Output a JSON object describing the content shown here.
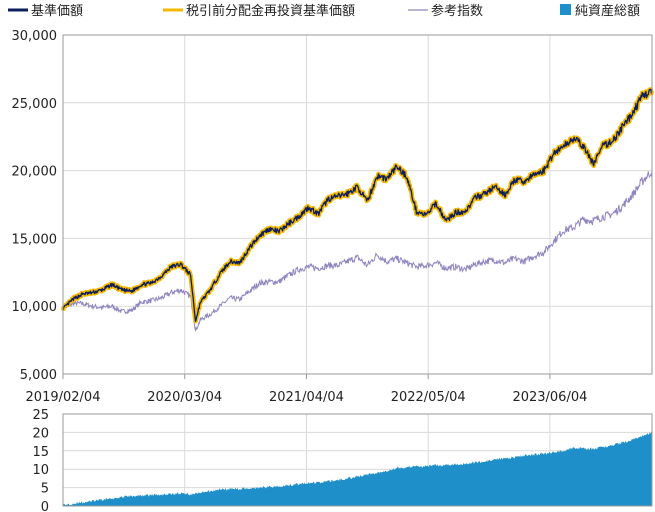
{
  "chart_data": [
    {
      "type": "line",
      "legend_position": "top",
      "legend": [
        {
          "name": "基準価額",
          "color": "#0d1f5c",
          "marker": "line"
        },
        {
          "name": "税引前分配金再投資基準価額",
          "color": "#f5b800",
          "marker": "line"
        },
        {
          "name": "参考指数",
          "color": "#8e86c0",
          "marker": "line"
        },
        {
          "name": "純資産総額",
          "color": "#1f8fc9",
          "marker": "square"
        }
      ],
      "x_tick_labels": [
        "2019/02/04",
        "2020/03/04",
        "2021/04/04",
        "2022/05/04",
        "2023/06/04"
      ],
      "y_tick_labels": [
        "5,000",
        "10,000",
        "15,000",
        "20,000",
        "25,000",
        "30,000"
      ],
      "ylim": [
        5000,
        30000
      ],
      "grid": true,
      "x_range_months": [
        0,
        60
      ],
      "series": [
        {
          "name": "税引前分配金再投資基準価額",
          "color": "#f5b800",
          "points": [
            [
              0,
              9800
            ],
            [
              1,
              10500
            ],
            [
              2,
              10900
            ],
            [
              3,
              11000
            ],
            [
              4,
              11200
            ],
            [
              5,
              11600
            ],
            [
              6,
              11200
            ],
            [
              7,
              11100
            ],
            [
              8,
              11600
            ],
            [
              9,
              11700
            ],
            [
              10,
              12200
            ],
            [
              11,
              12900
            ],
            [
              12,
              13100
            ],
            [
              13,
              12300
            ],
            [
              13.5,
              8900
            ],
            [
              14,
              10300
            ],
            [
              15,
              11200
            ],
            [
              16,
              12400
            ],
            [
              17,
              13300
            ],
            [
              18,
              13200
            ],
            [
              19,
              14300
            ],
            [
              20,
              15200
            ],
            [
              21,
              15700
            ],
            [
              22,
              15500
            ],
            [
              23,
              16100
            ],
            [
              24,
              16600
            ],
            [
              25,
              17300
            ],
            [
              26,
              16800
            ],
            [
              27,
              17900
            ],
            [
              28,
              18100
            ],
            [
              29,
              18300
            ],
            [
              30,
              18800
            ],
            [
              31,
              17700
            ],
            [
              32,
              19600
            ],
            [
              33,
              19400
            ],
            [
              34,
              20300
            ],
            [
              35,
              19600
            ],
            [
              36,
              17000
            ],
            [
              37,
              16700
            ],
            [
              38,
              17600
            ],
            [
              39,
              16300
            ],
            [
              40,
              16900
            ],
            [
              41,
              17000
            ],
            [
              42,
              18000
            ],
            [
              43,
              18300
            ],
            [
              44,
              18800
            ],
            [
              45,
              18200
            ],
            [
              46,
              19300
            ],
            [
              47,
              19200
            ],
            [
              48,
              19700
            ],
            [
              49,
              20000
            ],
            [
              50,
              21300
            ],
            [
              51,
              21800
            ],
            [
              52,
              22400
            ],
            [
              53,
              21800
            ],
            [
              54,
              20500
            ],
            [
              55,
              21800
            ],
            [
              56,
              22200
            ],
            [
              57,
              23200
            ],
            [
              58,
              24200
            ],
            [
              59,
              25500
            ],
            [
              60,
              25900
            ]
          ]
        },
        {
          "name": "基準価額",
          "color": "#0d1f5c",
          "same_as": "税引前分配金再投資基準価額"
        },
        {
          "name": "参考指数",
          "color": "#8e86c0",
          "points": [
            [
              0,
              9800
            ],
            [
              1,
              10200
            ],
            [
              2,
              10200
            ],
            [
              3,
              10000
            ],
            [
              4,
              9900
            ],
            [
              5,
              10000
            ],
            [
              6,
              9600
            ],
            [
              7,
              9700
            ],
            [
              8,
              10300
            ],
            [
              9,
              10400
            ],
            [
              10,
              10600
            ],
            [
              11,
              11000
            ],
            [
              12,
              11200
            ],
            [
              13,
              10700
            ],
            [
              13.5,
              8200
            ],
            [
              14,
              9000
            ],
            [
              15,
              9400
            ],
            [
              16,
              10000
            ],
            [
              17,
              10600
            ],
            [
              18,
              10500
            ],
            [
              19,
              11100
            ],
            [
              20,
              11700
            ],
            [
              21,
              11800
            ],
            [
              22,
              11800
            ],
            [
              23,
              12300
            ],
            [
              24,
              12700
            ],
            [
              25,
              12900
            ],
            [
              26,
              12800
            ],
            [
              27,
              13000
            ],
            [
              28,
              13000
            ],
            [
              29,
              13300
            ],
            [
              30,
              13600
            ],
            [
              31,
              13000
            ],
            [
              32,
              13800
            ],
            [
              33,
              13300
            ],
            [
              34,
              13500
            ],
            [
              35,
              13200
            ],
            [
              36,
              12900
            ],
            [
              37,
              13000
            ],
            [
              38,
              13200
            ],
            [
              39,
              12800
            ],
            [
              40,
              12900
            ],
            [
              41,
              12700
            ],
            [
              42,
              13100
            ],
            [
              43,
              13300
            ],
            [
              44,
              13400
            ],
            [
              45,
              13200
            ],
            [
              46,
              13500
            ],
            [
              47,
              13300
            ],
            [
              48,
              13700
            ],
            [
              49,
              14000
            ],
            [
              50,
              14800
            ],
            [
              51,
              15600
            ],
            [
              52,
              15800
            ],
            [
              53,
              16400
            ],
            [
              54,
              16300
            ],
            [
              55,
              16600
            ],
            [
              56,
              16800
            ],
            [
              57,
              17400
            ],
            [
              58,
              18200
            ],
            [
              59,
              19200
            ],
            [
              60,
              20000
            ]
          ]
        }
      ]
    },
    {
      "type": "area",
      "y_tick_labels": [
        "0",
        "5",
        "10",
        "15",
        "20",
        "25"
      ],
      "ylim": [
        0,
        25
      ],
      "grid": true,
      "series": [
        {
          "name": "純資産総額",
          "color": "#1f8fc9",
          "points": [
            [
              0,
              0.3
            ],
            [
              3,
              1.3
            ],
            [
              6,
              2.5
            ],
            [
              9,
              3.0
            ],
            [
              12,
              3.4
            ],
            [
              13,
              3.2
            ],
            [
              14,
              3.5
            ],
            [
              16,
              4.5
            ],
            [
              18,
              4.7
            ],
            [
              20,
              5.0
            ],
            [
              22,
              5.4
            ],
            [
              24,
              6.0
            ],
            [
              26,
              6.4
            ],
            [
              28,
              7.0
            ],
            [
              30,
              8.0
            ],
            [
              32,
              9.0
            ],
            [
              34,
              10.3
            ],
            [
              36,
              10.7
            ],
            [
              38,
              11.0
            ],
            [
              40,
              11.3
            ],
            [
              42,
              11.8
            ],
            [
              44,
              12.5
            ],
            [
              46,
              13.3
            ],
            [
              48,
              14.0
            ],
            [
              50,
              14.5
            ],
            [
              52,
              15.8
            ],
            [
              54,
              15.5
            ],
            [
              56,
              16.5
            ],
            [
              58,
              18.0
            ],
            [
              60,
              20.0
            ]
          ]
        }
      ]
    }
  ]
}
